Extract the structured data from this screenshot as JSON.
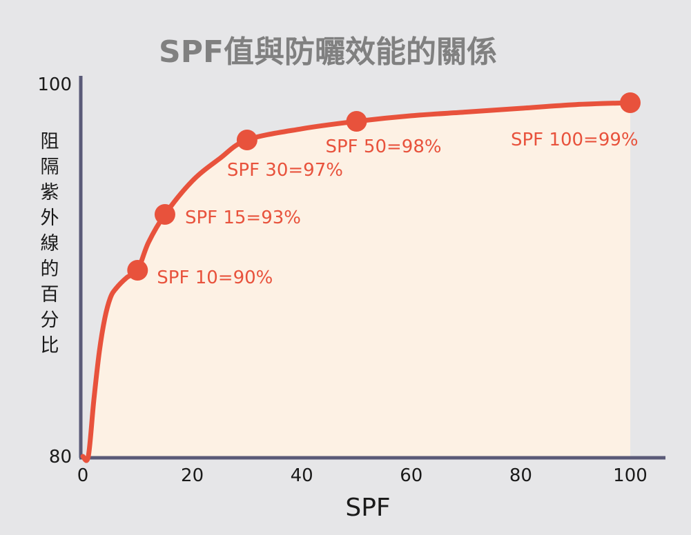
{
  "chart_data": {
    "type": "line",
    "title": "SPF值與防曬效能的關係",
    "xlabel": "SPF",
    "ylabel": "阻隔紫外線的百分比",
    "xlim": [
      0,
      100
    ],
    "ylim": [
      80,
      100
    ],
    "x_ticks": [
      "0",
      "20",
      "40",
      "60",
      "80",
      "100"
    ],
    "y_ticks": [
      "80",
      "100"
    ],
    "grid": false,
    "colors": {
      "background": "#e6e6e8",
      "area_fill": "#fdf1e4",
      "line": "#e8523c",
      "axis": "#5a5a78",
      "title": "#808080"
    },
    "series": [
      {
        "x": [
          1,
          2,
          3,
          4,
          5,
          6,
          8,
          10,
          12,
          15,
          20,
          25,
          30,
          40,
          50,
          60,
          70,
          80,
          90,
          100
        ],
        "values": [
          80,
          83,
          85.6,
          87.4,
          88.5,
          89,
          89.6,
          90,
          91.5,
          93,
          94.8,
          96,
          97,
          97.6,
          98,
          98.3,
          98.5,
          98.7,
          98.9,
          99
        ]
      }
    ],
    "points": [
      {
        "x": 10,
        "y": 90,
        "label": "SPF 10=90%"
      },
      {
        "x": 15,
        "y": 93,
        "label": "SPF 15=93%"
      },
      {
        "x": 30,
        "y": 97,
        "label": "SPF 30=97%"
      },
      {
        "x": 50,
        "y": 98,
        "label": "SPF 50=98%"
      },
      {
        "x": 100,
        "y": 99,
        "label": "SPF 100=99%"
      }
    ]
  }
}
